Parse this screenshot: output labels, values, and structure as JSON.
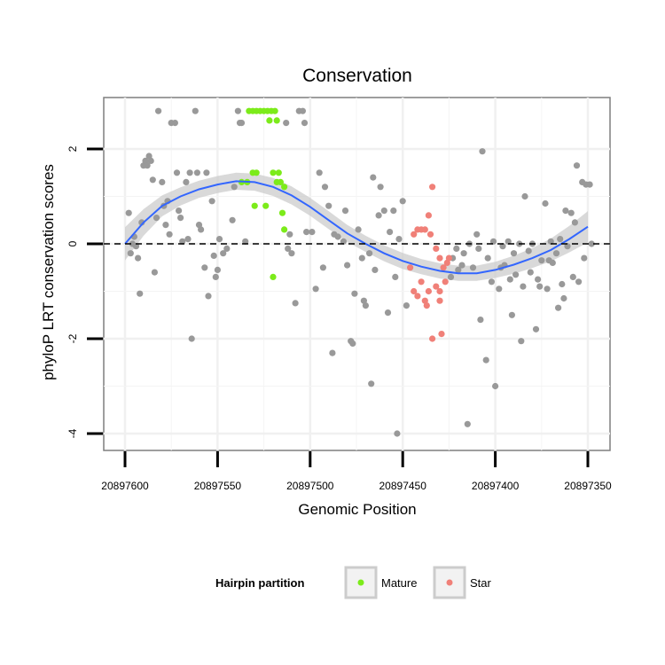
{
  "chart_data": {
    "type": "scatter",
    "title": "Conservation",
    "xlabel": "Genomic Position",
    "ylabel": "phyloP LRT conservation scores",
    "x_reversed": true,
    "xlim": [
      20897620,
      20897340
    ],
    "ylim": [
      -4.3,
      3.1
    ],
    "xticks": [
      20897600,
      20897550,
      20897500,
      20897450,
      20897400,
      20897350
    ],
    "xtick_labels": [
      "20897600",
      "20897550",
      "20897500",
      "20897450",
      "20897400",
      "20897350"
    ],
    "yticks": [
      -4,
      -2,
      0,
      2
    ],
    "ytick_labels": [
      "-4",
      "-2",
      "0",
      "2"
    ],
    "reference_line": {
      "y": 0,
      "style": "dashed"
    },
    "grid": true,
    "legend": {
      "title": "Hairpin partition",
      "placement": "bottom",
      "entries": [
        {
          "label": "Mature",
          "color": "#7CEB1A"
        },
        {
          "label": "Star",
          "color": "#F08078"
        }
      ]
    },
    "colors": {
      "other": "#999999",
      "Mature": "#7CEB1A",
      "Star": "#F08078",
      "smooth": "#3366FF",
      "band": "#CCCCCC"
    },
    "smooth": {
      "x": [
        20897600,
        20897590,
        20897580,
        20897570,
        20897560,
        20897550,
        20897540,
        20897530,
        20897520,
        20897510,
        20897500,
        20897490,
        20897480,
        20897470,
        20897460,
        20897450,
        20897440,
        20897430,
        20897420,
        20897410,
        20897400,
        20897390,
        20897380,
        20897370,
        20897360,
        20897350
      ],
      "y": [
        0.0,
        0.45,
        0.8,
        1.0,
        1.15,
        1.25,
        1.32,
        1.3,
        1.2,
        1.02,
        0.78,
        0.5,
        0.22,
        0.0,
        -0.2,
        -0.36,
        -0.48,
        -0.57,
        -0.62,
        -0.62,
        -0.55,
        -0.44,
        -0.3,
        -0.13,
        0.1,
        0.36
      ],
      "band_halfwidth": [
        0.35,
        0.28,
        0.22,
        0.19,
        0.18,
        0.18,
        0.18,
        0.18,
        0.19,
        0.19,
        0.19,
        0.19,
        0.18,
        0.17,
        0.17,
        0.17,
        0.16,
        0.16,
        0.16,
        0.16,
        0.17,
        0.19,
        0.21,
        0.24,
        0.28,
        0.33
      ]
    },
    "series": [
      {
        "name": "Mature",
        "color": "#7CEB1A",
        "points": [
          [
            20897533,
            2.8
          ],
          [
            20897531,
            2.8
          ],
          [
            20897529,
            2.8
          ],
          [
            20897527,
            2.8
          ],
          [
            20897525,
            2.8
          ],
          [
            20897523,
            2.8
          ],
          [
            20897521,
            2.8
          ],
          [
            20897519,
            2.8
          ],
          [
            20897531,
            1.5
          ],
          [
            20897529,
            1.5
          ],
          [
            20897534,
            1.3
          ],
          [
            20897530,
            0.8
          ],
          [
            20897522,
            2.6
          ],
          [
            20897518,
            2.6
          ],
          [
            20897520,
            1.5
          ],
          [
            20897517,
            1.5
          ],
          [
            20897518,
            1.3
          ],
          [
            20897516,
            1.3
          ],
          [
            20897514,
            1.2
          ],
          [
            20897515,
            0.65
          ],
          [
            20897514,
            0.3
          ],
          [
            20897524,
            0.8
          ],
          [
            20897520,
            -0.7
          ],
          [
            20897537,
            1.3
          ]
        ]
      },
      {
        "name": "Star",
        "color": "#F08078",
        "points": [
          [
            20897434,
            1.2
          ],
          [
            20897442,
            0.3
          ],
          [
            20897440,
            0.3
          ],
          [
            20897438,
            0.3
          ],
          [
            20897436,
            0.6
          ],
          [
            20897444,
            0.2
          ],
          [
            20897435,
            0.2
          ],
          [
            20897432,
            -0.1
          ],
          [
            20897430,
            -0.3
          ],
          [
            20897428,
            -0.5
          ],
          [
            20897426,
            -0.4
          ],
          [
            20897425,
            -0.3
          ],
          [
            20897440,
            -0.8
          ],
          [
            20897437,
            -1.3
          ],
          [
            20897432,
            -0.9
          ],
          [
            20897430,
            -1.0
          ],
          [
            20897427,
            -0.8
          ],
          [
            20897442,
            -1.1
          ],
          [
            20897444,
            -1.0
          ],
          [
            20897438,
            -1.2
          ],
          [
            20897436,
            -1.0
          ],
          [
            20897434,
            -2.0
          ],
          [
            20897429,
            -1.9
          ],
          [
            20897446,
            -0.5
          ],
          [
            20897430,
            -1.2
          ]
        ]
      },
      {
        "name": "",
        "color": "#999999",
        "points": [
          [
            20897598,
            0.65
          ],
          [
            20897597,
            -0.2
          ],
          [
            20897596,
            0.0
          ],
          [
            20897595,
            0.15
          ],
          [
            20897594,
            -0.05
          ],
          [
            20897593,
            -0.3
          ],
          [
            20897592,
            -1.05
          ],
          [
            20897591,
            0.45
          ],
          [
            20897590,
            1.65
          ],
          [
            20897589,
            1.75
          ],
          [
            20897588,
            1.65
          ],
          [
            20897587,
            1.85
          ],
          [
            20897586,
            1.75
          ],
          [
            20897585,
            1.35
          ],
          [
            20897583,
            0.55
          ],
          [
            20897584,
            -0.6
          ],
          [
            20897582,
            2.8
          ],
          [
            20897580,
            1.3
          ],
          [
            20897579,
            0.8
          ],
          [
            20897578,
            0.4
          ],
          [
            20897577,
            0.9
          ],
          [
            20897576,
            0.2
          ],
          [
            20897575,
            2.55
          ],
          [
            20897573,
            2.55
          ],
          [
            20897572,
            1.5
          ],
          [
            20897571,
            0.7
          ],
          [
            20897570,
            0.55
          ],
          [
            20897569,
            0.05
          ],
          [
            20897567,
            1.3
          ],
          [
            20897566,
            0.1
          ],
          [
            20897565,
            1.5
          ],
          [
            20897564,
            -2.0
          ],
          [
            20897562,
            2.8
          ],
          [
            20897561,
            1.5
          ],
          [
            20897560,
            0.4
          ],
          [
            20897559,
            0.3
          ],
          [
            20897557,
            -0.5
          ],
          [
            20897556,
            1.5
          ],
          [
            20897555,
            -1.1
          ],
          [
            20897553,
            0.9
          ],
          [
            20897552,
            -0.25
          ],
          [
            20897551,
            -0.7
          ],
          [
            20897550,
            -0.55
          ],
          [
            20897549,
            0.1
          ],
          [
            20897547,
            -0.2
          ],
          [
            20897545,
            -0.1
          ],
          [
            20897542,
            0.5
          ],
          [
            20897541,
            1.2
          ],
          [
            20897539,
            2.8
          ],
          [
            20897538,
            2.55
          ],
          [
            20897537,
            2.55
          ],
          [
            20897535,
            0.05
          ],
          [
            20897513,
            2.55
          ],
          [
            20897512,
            -0.1
          ],
          [
            20897511,
            0.2
          ],
          [
            20897510,
            -0.2
          ],
          [
            20897508,
            -1.25
          ],
          [
            20897506,
            2.8
          ],
          [
            20897504,
            2.8
          ],
          [
            20897503,
            2.55
          ],
          [
            20897502,
            0.25
          ],
          [
            20897499,
            0.25
          ],
          [
            20897497,
            -0.95
          ],
          [
            20897495,
            1.5
          ],
          [
            20897493,
            -0.5
          ],
          [
            20897492,
            1.2
          ],
          [
            20897490,
            0.8
          ],
          [
            20897488,
            -2.3
          ],
          [
            20897487,
            0.2
          ],
          [
            20897485,
            0.15
          ],
          [
            20897482,
            0.05
          ],
          [
            20897481,
            0.7
          ],
          [
            20897480,
            -0.45
          ],
          [
            20897478,
            -2.05
          ],
          [
            20897477,
            -2.1
          ],
          [
            20897476,
            -1.05
          ],
          [
            20897474,
            0.3
          ],
          [
            20897472,
            -0.3
          ],
          [
            20897471,
            -1.2
          ],
          [
            20897470,
            -1.3
          ],
          [
            20897468,
            -0.2
          ],
          [
            20897467,
            -2.95
          ],
          [
            20897466,
            1.4
          ],
          [
            20897465,
            -0.55
          ],
          [
            20897463,
            0.6
          ],
          [
            20897462,
            1.2
          ],
          [
            20897460,
            0.7
          ],
          [
            20897458,
            -1.45
          ],
          [
            20897457,
            0.25
          ],
          [
            20897455,
            0.7
          ],
          [
            20897454,
            -0.7
          ],
          [
            20897453,
            -4.0
          ],
          [
            20897452,
            0.1
          ],
          [
            20897450,
            0.9
          ],
          [
            20897448,
            -1.3
          ],
          [
            20897424,
            -0.7
          ],
          [
            20897423,
            -0.3
          ],
          [
            20897421,
            -0.1
          ],
          [
            20897420,
            -0.55
          ],
          [
            20897418,
            -0.45
          ],
          [
            20897417,
            -0.2
          ],
          [
            20897415,
            -3.8
          ],
          [
            20897414,
            0.0
          ],
          [
            20897412,
            -0.5
          ],
          [
            20897410,
            0.2
          ],
          [
            20897409,
            -0.1
          ],
          [
            20897408,
            -1.6
          ],
          [
            20897407,
            1.95
          ],
          [
            20897405,
            -2.45
          ],
          [
            20897404,
            -0.3
          ],
          [
            20897402,
            -0.8
          ],
          [
            20897401,
            0.05
          ],
          [
            20897400,
            -3.0
          ],
          [
            20897398,
            -0.95
          ],
          [
            20897397,
            -0.5
          ],
          [
            20897396,
            -0.05
          ],
          [
            20897395,
            -0.45
          ],
          [
            20897393,
            0.05
          ],
          [
            20897392,
            -0.75
          ],
          [
            20897391,
            -1.5
          ],
          [
            20897390,
            -0.2
          ],
          [
            20897389,
            -0.65
          ],
          [
            20897387,
            0.0
          ],
          [
            20897386,
            -2.05
          ],
          [
            20897385,
            -0.9
          ],
          [
            20897384,
            1.0
          ],
          [
            20897382,
            -0.15
          ],
          [
            20897381,
            -0.6
          ],
          [
            20897380,
            0.0
          ],
          [
            20897378,
            -1.8
          ],
          [
            20897377,
            -0.75
          ],
          [
            20897376,
            -0.9
          ],
          [
            20897375,
            -0.35
          ],
          [
            20897373,
            0.85
          ],
          [
            20897372,
            -0.95
          ],
          [
            20897371,
            -0.35
          ],
          [
            20897370,
            0.05
          ],
          [
            20897369,
            -0.4
          ],
          [
            20897367,
            -0.2
          ],
          [
            20897366,
            -1.35
          ],
          [
            20897365,
            0.1
          ],
          [
            20897364,
            -0.85
          ],
          [
            20897363,
            -1.15
          ],
          [
            20897362,
            0.7
          ],
          [
            20897361,
            -0.05
          ],
          [
            20897359,
            0.65
          ],
          [
            20897358,
            -0.7
          ],
          [
            20897357,
            0.45
          ],
          [
            20897356,
            1.65
          ],
          [
            20897355,
            -0.8
          ],
          [
            20897353,
            1.3
          ],
          [
            20897352,
            -0.3
          ],
          [
            20897351,
            1.25
          ],
          [
            20897349,
            1.25
          ],
          [
            20897348,
            0.0
          ]
        ]
      }
    ]
  }
}
